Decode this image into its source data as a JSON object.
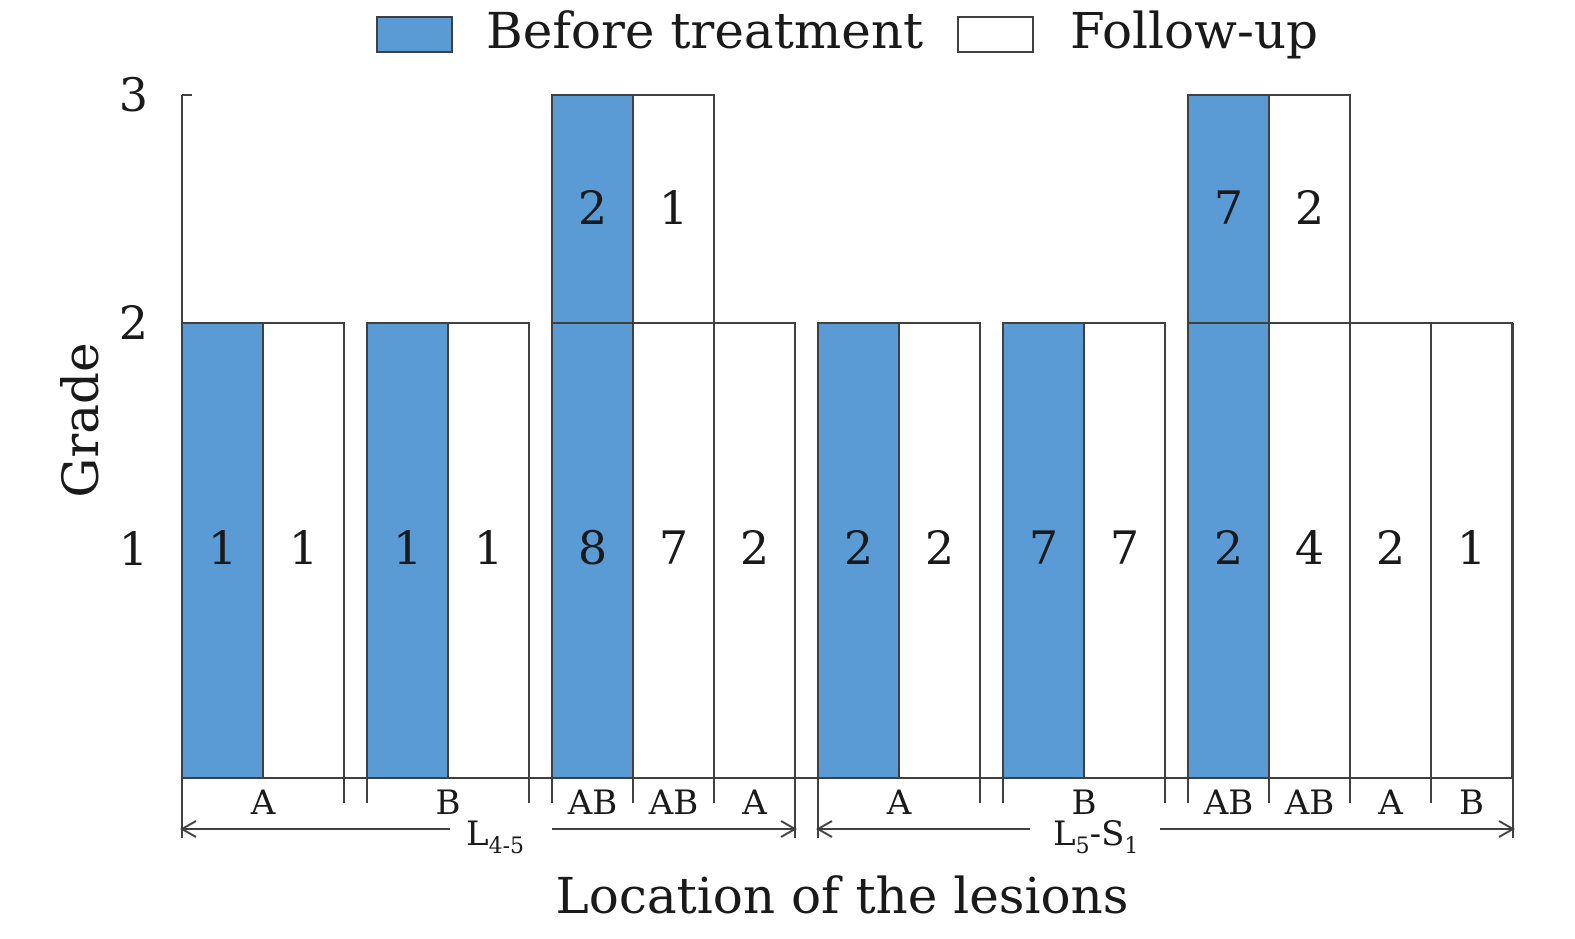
{
  "chart_data": {
    "type": "bar",
    "xlabel": "Location of the lesions",
    "ylabel": "Grade",
    "yticks": [
      "1",
      "2",
      "3"
    ],
    "ylim": [
      0,
      3
    ],
    "legend": {
      "placement": "top",
      "entries": [
        {
          "label": "Before treatment",
          "color": "#5b9bd5"
        },
        {
          "label": "Follow-up",
          "color": "#ffffff"
        }
      ]
    },
    "groups": [
      {
        "base": "L",
        "sub": "4-5",
        "sup": "",
        "suffix": "",
        "sub2": ""
      },
      {
        "base": "L",
        "sub": "5",
        "sup": "",
        "suffix": "-S",
        "sub2": "1"
      }
    ],
    "columns": [
      {
        "category": "A",
        "group": 0,
        "series": "Before treatment",
        "grade": 2,
        "counts": [
          "1"
        ]
      },
      {
        "category": "A",
        "group": 0,
        "series": "Follow-up",
        "grade": 2,
        "counts": [
          "1"
        ]
      },
      {
        "category": "B",
        "group": 0,
        "series": "Before treatment",
        "grade": 2,
        "counts": [
          "1"
        ]
      },
      {
        "category": "B",
        "group": 0,
        "series": "Follow-up",
        "grade": 2,
        "counts": [
          "1"
        ]
      },
      {
        "category": "AB",
        "group": 0,
        "series": "Before treatment",
        "grade": 3,
        "counts": [
          "8",
          "2"
        ]
      },
      {
        "category": "AB",
        "group": 0,
        "series": "Follow-up",
        "grade": 3,
        "counts": [
          "7",
          "1"
        ]
      },
      {
        "category": "A",
        "group": 0,
        "series": "Follow-up",
        "grade": 2,
        "counts": [
          "2"
        ]
      },
      {
        "category": "A",
        "group": 1,
        "series": "Before treatment",
        "grade": 2,
        "counts": [
          "2"
        ]
      },
      {
        "category": "A",
        "group": 1,
        "series": "Follow-up",
        "grade": 2,
        "counts": [
          "2"
        ]
      },
      {
        "category": "B",
        "group": 1,
        "series": "Before treatment",
        "grade": 2,
        "counts": [
          "7"
        ]
      },
      {
        "category": "B",
        "group": 1,
        "series": "Follow-up",
        "grade": 2,
        "counts": [
          "7"
        ]
      },
      {
        "category": "AB",
        "group": 1,
        "series": "Before treatment",
        "grade": 3,
        "counts": [
          "2",
          "7"
        ]
      },
      {
        "category": "AB",
        "group": 1,
        "series": "Follow-up",
        "grade": 3,
        "counts": [
          "4",
          "2"
        ]
      },
      {
        "category": "A",
        "group": 1,
        "series": "Follow-up",
        "grade": 2,
        "counts": [
          "2"
        ]
      },
      {
        "category": "B",
        "group": 1,
        "series": "Follow-up",
        "grade": 2,
        "counts": [
          "1"
        ]
      }
    ],
    "category_labels": [
      {
        "text": "A",
        "group": 0
      },
      {
        "text": "B",
        "group": 0
      },
      {
        "text": "AB",
        "group": 0
      },
      {
        "text": "AB",
        "group": 0
      },
      {
        "text": "A",
        "group": 0
      },
      {
        "text": "A",
        "group": 1
      },
      {
        "text": "B",
        "group": 1
      },
      {
        "text": "AB",
        "group": 1
      },
      {
        "text": "AB",
        "group": 1
      },
      {
        "text": "A",
        "group": 1
      },
      {
        "text": "B",
        "group": 1
      }
    ],
    "grid": false
  }
}
